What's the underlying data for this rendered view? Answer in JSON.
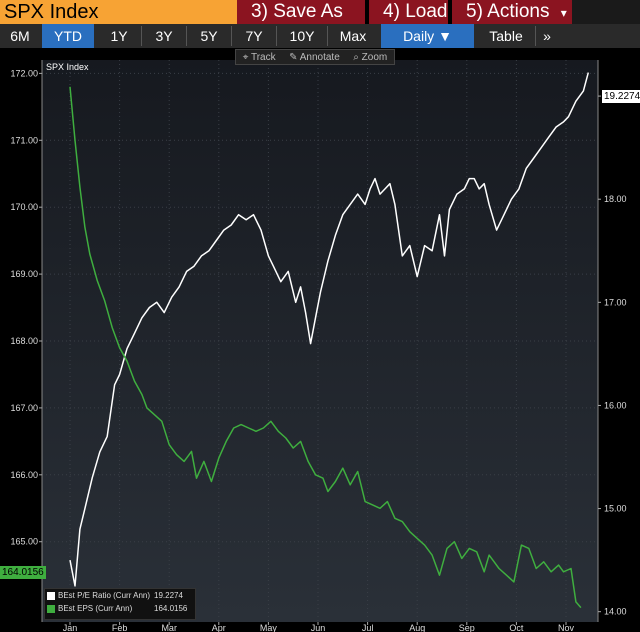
{
  "header": {
    "title": "SPX Index",
    "menu": [
      {
        "num": "3)",
        "label": "Save As"
      },
      {
        "num": "4)",
        "label": "Load"
      },
      {
        "num": "5)",
        "label": "Actions",
        "caret": "▾"
      }
    ],
    "colors": {
      "title_bg": "#f7a334",
      "menu_bg": "#8b1420"
    }
  },
  "nav": {
    "ranges": [
      "6M",
      "YTD",
      "1Y",
      "3Y",
      "5Y",
      "7Y",
      "10Y",
      "Max"
    ],
    "active_range": "YTD",
    "frequency": "Daily",
    "frequency_caret": "▼",
    "table": "Table",
    "more": "»"
  },
  "tools": {
    "track": "Track",
    "annotate": "Annotate",
    "zoom": "Zoom"
  },
  "chart_data": {
    "type": "line",
    "title": "SPX Index",
    "x_ticks": [
      "Jan",
      "Feb",
      "Mar",
      "Apr",
      "May",
      "Jun",
      "Jul",
      "Aug",
      "Sep",
      "Oct",
      "Nov"
    ],
    "left_axis": {
      "ylim": [
        163.8,
        172.2
      ],
      "ticks": [
        "165.00",
        "166.00",
        "167.00",
        "168.00",
        "169.00",
        "170.00",
        "171.00",
        "172.00"
      ]
    },
    "right_axis": {
      "ylim": [
        13.9,
        19.35
      ],
      "ticks": [
        "14.00",
        "15.00",
        "16.00",
        "17.00",
        "18.00",
        "19.00"
      ]
    },
    "grid": true,
    "legend_placement": "bottom-left",
    "series": [
      {
        "name": "BEst P/E Ratio (Curr Ann)",
        "axis": "right",
        "color": "#ffffff",
        "last_value": "19.2274",
        "x": [
          0.0,
          0.1,
          0.2,
          0.3,
          0.45,
          0.6,
          0.75,
          0.9,
          1.0,
          1.15,
          1.3,
          1.45,
          1.6,
          1.75,
          1.9,
          2.05,
          2.2,
          2.35,
          2.5,
          2.65,
          2.8,
          2.95,
          3.1,
          3.25,
          3.4,
          3.55,
          3.7,
          3.85,
          4.0,
          4.1,
          4.25,
          4.4,
          4.55,
          4.65,
          4.75,
          4.85,
          4.95,
          5.05,
          5.2,
          5.35,
          5.5,
          5.65,
          5.8,
          5.95,
          6.05,
          6.15,
          6.25,
          6.35,
          6.45,
          6.55,
          6.7,
          6.85,
          7.0,
          7.15,
          7.3,
          7.45,
          7.55,
          7.65,
          7.8,
          7.95,
          8.05,
          8.15,
          8.25,
          8.35,
          8.45,
          8.6,
          8.75,
          8.9,
          9.05,
          9.2,
          9.35,
          9.5,
          9.65,
          9.8,
          9.95,
          10.05,
          10.2,
          10.35,
          10.45
        ],
        "y": [
          14.5,
          14.25,
          14.8,
          15.0,
          15.3,
          15.55,
          15.7,
          16.2,
          16.3,
          16.55,
          16.7,
          16.85,
          16.95,
          17.0,
          16.9,
          17.05,
          17.15,
          17.3,
          17.35,
          17.45,
          17.5,
          17.6,
          17.7,
          17.75,
          17.85,
          17.8,
          17.85,
          17.7,
          17.45,
          17.35,
          17.2,
          17.3,
          17.0,
          17.15,
          16.9,
          16.6,
          16.85,
          17.1,
          17.4,
          17.65,
          17.85,
          17.95,
          18.05,
          17.95,
          18.1,
          18.2,
          18.05,
          18.1,
          18.15,
          17.95,
          17.45,
          17.55,
          17.25,
          17.55,
          17.5,
          17.85,
          17.45,
          17.9,
          18.05,
          18.1,
          18.2,
          18.2,
          18.1,
          18.15,
          17.95,
          17.7,
          17.85,
          18.0,
          18.1,
          18.3,
          18.4,
          18.5,
          18.6,
          18.7,
          18.75,
          18.8,
          18.95,
          19.05,
          19.2274
        ]
      },
      {
        "name": "BEst EPS (Curr Ann)",
        "axis": "left",
        "color": "#3fae3f",
        "last_value": "164.0156",
        "x": [
          0.0,
          0.1,
          0.2,
          0.3,
          0.4,
          0.55,
          0.7,
          0.85,
          1.0,
          1.15,
          1.3,
          1.45,
          1.55,
          1.7,
          1.85,
          2.0,
          2.15,
          2.3,
          2.45,
          2.55,
          2.7,
          2.85,
          3.0,
          3.15,
          3.3,
          3.45,
          3.6,
          3.75,
          3.9,
          4.05,
          4.2,
          4.35,
          4.5,
          4.65,
          4.8,
          4.95,
          5.1,
          5.2,
          5.35,
          5.5,
          5.65,
          5.8,
          5.95,
          6.1,
          6.25,
          6.4,
          6.55,
          6.7,
          6.85,
          7.0,
          7.15,
          7.3,
          7.45,
          7.6,
          7.75,
          7.9,
          8.05,
          8.2,
          8.35,
          8.45,
          8.55,
          8.65,
          8.8,
          8.95,
          9.1,
          9.25,
          9.4,
          9.55,
          9.7,
          9.85,
          9.95,
          10.1,
          10.2,
          10.3
        ],
        "y": [
          171.8,
          171.0,
          170.3,
          169.7,
          169.3,
          168.9,
          168.6,
          168.2,
          167.9,
          167.7,
          167.4,
          167.2,
          167.0,
          166.9,
          166.8,
          166.45,
          166.3,
          166.2,
          166.35,
          165.95,
          166.2,
          165.9,
          166.25,
          166.5,
          166.7,
          166.75,
          166.7,
          166.65,
          166.7,
          166.8,
          166.65,
          166.55,
          166.4,
          166.5,
          166.2,
          166.0,
          165.95,
          165.75,
          165.9,
          166.1,
          165.85,
          166.05,
          165.6,
          165.55,
          165.5,
          165.6,
          165.35,
          165.3,
          165.15,
          165.05,
          164.95,
          164.8,
          164.5,
          164.9,
          165.0,
          164.75,
          164.9,
          164.85,
          164.55,
          164.8,
          164.7,
          164.6,
          164.5,
          164.4,
          164.95,
          164.9,
          164.6,
          164.7,
          164.55,
          164.65,
          164.55,
          164.6,
          164.1,
          164.0156
        ]
      }
    ]
  }
}
